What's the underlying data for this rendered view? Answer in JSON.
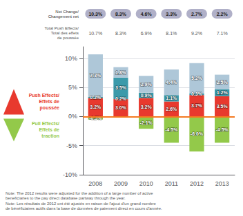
{
  "chart_data": {
    "type": "bar",
    "categories": [
      "2008",
      "2009",
      "2010",
      "2011",
      "2012",
      "2013"
    ],
    "stacked": true,
    "data_labels": true,
    "grid": true,
    "ylim": [
      -10,
      12
    ],
    "yticks": [
      {
        "value": -10,
        "label": "-10%"
      },
      {
        "value": -5,
        "label": "-5%"
      },
      {
        "value": 0,
        "label": "0%"
      },
      {
        "value": 5,
        "label": "5%"
      },
      {
        "value": 10,
        "label": "10%"
      }
    ],
    "series": [
      {
        "color": "#e8392e",
        "values": [
          3.2,
          3.0,
          3.2,
          2.6,
          3.7,
          3.5
        ],
        "value_labels": [
          "3.2%",
          "3.0%",
          "3.2%",
          "2.6%",
          "3.7%",
          "3.5%"
        ]
      },
      {
        "color": "#3b9aaa",
        "values": [
          0.2,
          0.2,
          0.9,
          1.1,
          0.3,
          1.2
        ],
        "value_labels": [
          "0.2%",
          "0.2%",
          "0.9%",
          "1.1%",
          "0.3%",
          "1.2%"
        ]
      },
      {
        "color": "#3b9aaa",
        "values": [
          0.0,
          3.5,
          0.0,
          0.0,
          0.0,
          0.0
        ],
        "value_labels": [
          null,
          "3.5%",
          null,
          null,
          null,
          null
        ]
      },
      {
        "color": "#aec7d8",
        "values": [
          7.3,
          1.8,
          2.9,
          4.4,
          5.2,
          2.5
        ],
        "value_labels": [
          "7.3%",
          "1.8%",
          "2.9%",
          "4.4%",
          "5.2%",
          "2.5%"
        ]
      },
      {
        "color": "#93c94a",
        "values": [
          -0.5,
          0.0,
          -2.1,
          -4.5,
          -6.0,
          -4.5
        ],
        "value_labels": [
          "-0.5%",
          null,
          "-2.1%",
          "-4.5%",
          "-6.0%",
          "-4.5%"
        ]
      }
    ],
    "reference_lines": [
      {
        "value": 0,
        "color": "#f47920"
      }
    ],
    "header_rows": [
      {
        "label": "Net Change/\nChangement net",
        "color": "#b0b0c8",
        "labels": [
          "10.3%",
          "8.3%",
          "4.6%",
          "3.3%",
          "2.7%",
          "2.2%"
        ]
      },
      {
        "label": "Total Push Effects/\nTotal des effets\nde poussée",
        "labels": [
          "10.7%",
          "8.3%",
          "6.9%",
          "8.1%",
          "9.2%",
          "7.1%"
        ]
      }
    ],
    "side_labels": [
      {
        "text": "Push Effects/\nEffets de\npoussée",
        "color": "#e8392e",
        "direction": "up"
      },
      {
        "text": "Pull Effects/\nEffets de\ntraction",
        "color": "#93c94a",
        "direction": "down"
      }
    ],
    "notes": [
      "Note: The 2012 results were adjusted for the addition of a large number of active\nbeneficiaries to the pay direct database partway through the year.",
      "Note: Les résultats de 2012 ont été ajustés en raison de l'ajout d'un grand nombre\nde bénéficiaires actifs dans la base de données de paiement direct en cours d'année."
    ]
  }
}
